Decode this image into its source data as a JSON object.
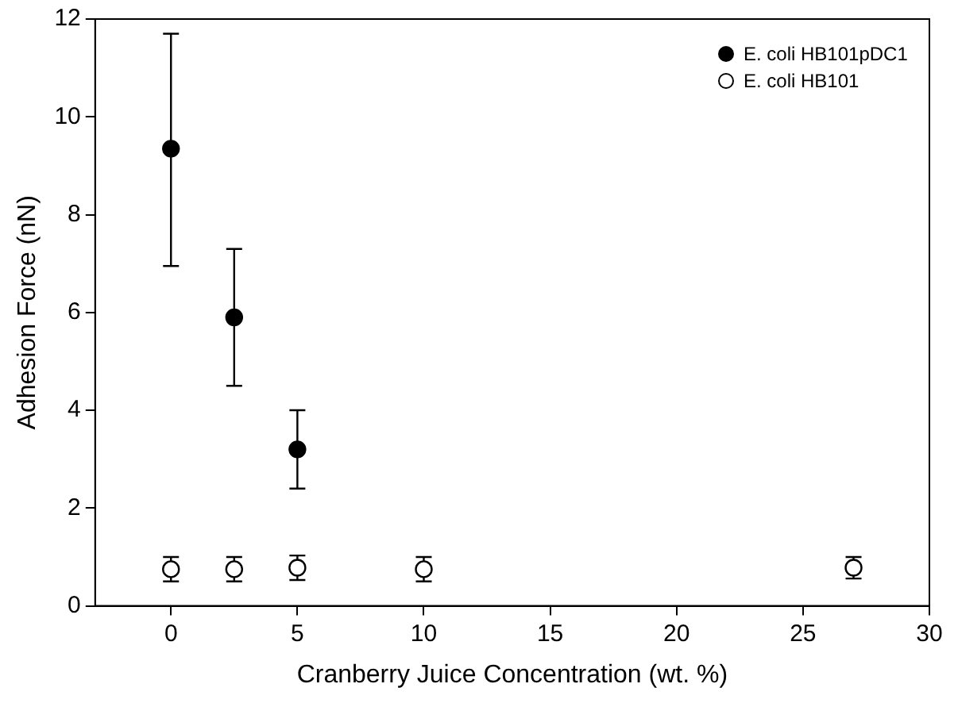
{
  "chart_data": {
    "type": "scatter",
    "xlabel": "Cranberry Juice Concentration (wt. %)",
    "ylabel": "Adhesion Force (nN)",
    "xlim": [
      -3,
      30
    ],
    "xticks": [
      0,
      5,
      10,
      15,
      20,
      25,
      30
    ],
    "ylim": [
      0,
      12
    ],
    "yticks": [
      0,
      2,
      4,
      6,
      8,
      10,
      12
    ],
    "grid": false,
    "legend": "top right",
    "series": [
      {
        "name": "E. coli HB101pDC1",
        "color": "#000000",
        "marker": "circle",
        "x": [
          0,
          2.5,
          5
        ],
        "values": [
          9.35,
          5.9,
          3.2
        ],
        "errors": [
          [
            6.95,
            11.7
          ],
          [
            4.5,
            7.3
          ],
          [
            2.4,
            4.0
          ]
        ]
      },
      {
        "name": "E. coli HB101",
        "color": "#ffffff",
        "marker": "circle",
        "x": [
          0,
          2.5,
          5,
          10,
          27
        ],
        "values": [
          0.75,
          0.75,
          0.78,
          0.75,
          0.78
        ],
        "errors": [
          0.25,
          0.25,
          0.25,
          0.25,
          0.22
        ]
      }
    ]
  }
}
